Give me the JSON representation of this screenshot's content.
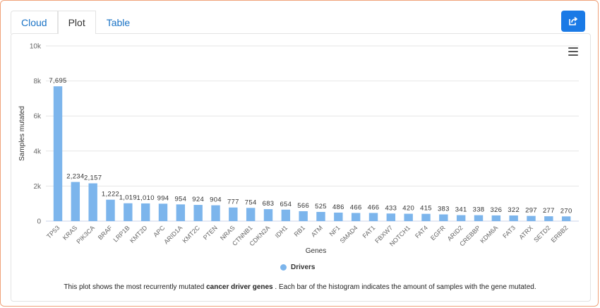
{
  "tabs": [
    "Cloud",
    "Plot",
    "Table"
  ],
  "active_tab": "Plot",
  "icons": {
    "share": "share-icon",
    "menu": "hamburger-menu-icon"
  },
  "colors": {
    "bar": "#7cb5ec",
    "accent": "#1a7ae6",
    "border": "#f0a27a"
  },
  "legend": {
    "label": "Drivers"
  },
  "caption": {
    "before": "This plot shows the most recurrently mutated ",
    "bold": "cancer driver genes",
    "after": " . Each bar of the histogram indicates the amount of samples with the gene mutated."
  },
  "chart_data": {
    "type": "bar",
    "xlabel": "Genes",
    "ylabel": "Samples mutated",
    "ylim": [
      0,
      10000
    ],
    "yticks": [
      0,
      2000,
      4000,
      6000,
      8000,
      10000
    ],
    "ytick_labels": [
      "0",
      "2k",
      "4k",
      "6k",
      "8k",
      "10k"
    ],
    "grid": true,
    "legend_position": "bottom",
    "categories": [
      "TP53",
      "KRAS",
      "PIK3CA",
      "BRAF",
      "LRP1B",
      "KMT2D",
      "APC",
      "ARID1A",
      "KMT2C",
      "PTEN",
      "NRAS",
      "CTNNB1",
      "CDKN2A",
      "IDH1",
      "RB1",
      "ATM",
      "NF1",
      "SMAD4",
      "FAT1",
      "FBXW7",
      "NOTCH1",
      "FAT4",
      "EGFR",
      "ARID2",
      "CREBBP",
      "KDM6A",
      "FAT3",
      "ATRX",
      "SETD2",
      "ERBB2"
    ],
    "series": [
      {
        "name": "Drivers",
        "values": [
          7695,
          2234,
          2157,
          1222,
          1019,
          1010,
          994,
          954,
          924,
          904,
          777,
          754,
          683,
          654,
          566,
          525,
          486,
          466,
          466,
          433,
          420,
          415,
          383,
          341,
          338,
          326,
          322,
          297,
          277,
          270
        ],
        "labels": [
          "7,695",
          "2,234",
          "2,157",
          "1,222",
          "1,019",
          "1,010",
          "994",
          "954",
          "924",
          "904",
          "777",
          "754",
          "683",
          "654",
          "566",
          "525",
          "486",
          "466",
          "466",
          "433",
          "420",
          "415",
          "383",
          "341",
          "338",
          "326",
          "322",
          "297",
          "277",
          "270"
        ]
      }
    ]
  }
}
